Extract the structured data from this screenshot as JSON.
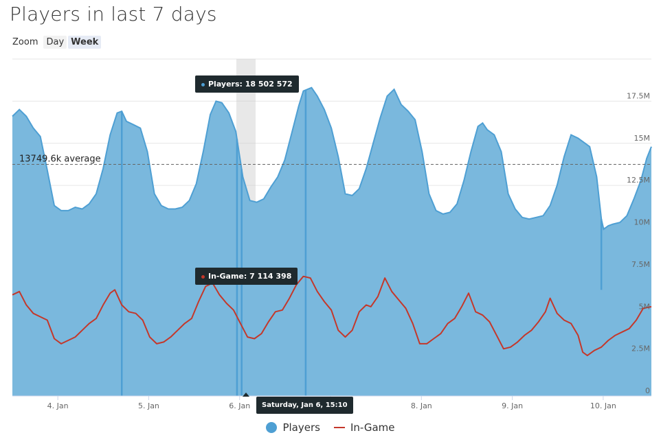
{
  "title": "Players in last 7 days",
  "zoom": {
    "label": "Zoom",
    "options": [
      "Day",
      "Week"
    ],
    "selected": "Week"
  },
  "chart_data": {
    "type": "area",
    "x_unit": "days",
    "xlim": [
      3.5,
      10.53
    ],
    "ylim": [
      0,
      20000000
    ],
    "yticks": [
      {
        "value": 0,
        "label": "0"
      },
      {
        "value": 2500000,
        "label": "2.5M"
      },
      {
        "value": 5000000,
        "label": "5M"
      },
      {
        "value": 7500000,
        "label": "7.5M"
      },
      {
        "value": 10000000,
        "label": "10M"
      },
      {
        "value": 12500000,
        "label": "12.5M"
      },
      {
        "value": 15000000,
        "label": "15M"
      },
      {
        "value": 17500000,
        "label": "17.5M"
      }
    ],
    "xticks": [
      {
        "value": 4,
        "label": "4. Jan"
      },
      {
        "value": 5,
        "label": "5. Jan"
      },
      {
        "value": 6,
        "label": "6. Jan"
      },
      {
        "value": 7,
        "label": "7. Jan"
      },
      {
        "value": 8,
        "label": "8. Jan"
      },
      {
        "value": 9,
        "label": "9. Jan"
      },
      {
        "value": 10,
        "label": "10. Jan"
      }
    ],
    "average": {
      "value": 13749600,
      "label": "13749.6k average"
    },
    "series": [
      {
        "name": "Players",
        "color": "#4e9fd3",
        "points": [
          [
            3.5,
            16.6
          ],
          [
            3.56,
            17.0
          ],
          [
            3.62,
            16.6
          ],
          [
            3.68,
            15.9
          ],
          [
            3.74,
            15.4
          ],
          [
            3.8,
            13.4
          ],
          [
            3.86,
            11.3
          ],
          [
            3.92,
            11.0
          ],
          [
            3.98,
            11.0
          ],
          [
            4.04,
            11.2
          ],
          [
            4.1,
            11.1
          ],
          [
            4.16,
            11.4
          ],
          [
            4.22,
            12.0
          ],
          [
            4.28,
            13.5
          ],
          [
            4.34,
            15.5
          ],
          [
            4.4,
            16.8
          ],
          [
            4.44,
            16.9
          ],
          [
            4.48,
            16.3
          ],
          [
            4.54,
            16.1
          ],
          [
            4.6,
            15.9
          ],
          [
            4.66,
            14.5
          ],
          [
            4.72,
            12.0
          ],
          [
            4.78,
            11.3
          ],
          [
            4.84,
            11.1
          ],
          [
            4.9,
            11.1
          ],
          [
            4.96,
            11.2
          ],
          [
            5.02,
            11.6
          ],
          [
            5.08,
            12.6
          ],
          [
            5.14,
            14.5
          ],
          [
            5.2,
            16.7
          ],
          [
            5.25,
            17.5
          ],
          [
            5.3,
            17.4
          ],
          [
            5.36,
            16.8
          ],
          [
            5.42,
            15.7
          ],
          [
            5.48,
            13.0
          ],
          [
            5.54,
            11.6
          ],
          [
            5.6,
            11.5
          ],
          [
            5.66,
            11.7
          ],
          [
            5.72,
            12.4
          ],
          [
            5.78,
            13.0
          ],
          [
            5.84,
            14.0
          ],
          [
            5.9,
            15.6
          ],
          [
            5.96,
            17.2
          ],
          [
            6.0,
            18.1
          ],
          [
            6.07,
            18.3
          ],
          [
            6.12,
            17.8
          ],
          [
            6.18,
            17.0
          ],
          [
            6.24,
            15.9
          ],
          [
            6.3,
            14.2
          ],
          [
            6.36,
            12.0
          ],
          [
            6.42,
            11.9
          ],
          [
            6.48,
            12.3
          ],
          [
            6.54,
            13.5
          ],
          [
            6.6,
            15.0
          ],
          [
            6.66,
            16.5
          ],
          [
            6.72,
            17.8
          ],
          [
            6.78,
            18.2
          ],
          [
            6.84,
            17.3
          ],
          [
            6.9,
            16.9
          ],
          [
            6.96,
            16.4
          ],
          [
            7.02,
            14.5
          ],
          [
            7.08,
            12.0
          ],
          [
            7.14,
            11.0
          ],
          [
            7.2,
            10.8
          ],
          [
            7.26,
            10.9
          ],
          [
            7.32,
            11.4
          ],
          [
            7.38,
            12.8
          ],
          [
            7.44,
            14.5
          ],
          [
            7.5,
            16.0
          ],
          [
            7.54,
            16.2
          ],
          [
            7.58,
            15.8
          ],
          [
            7.64,
            15.5
          ],
          [
            7.7,
            14.5
          ],
          [
            7.76,
            12.0
          ],
          [
            7.82,
            11.1
          ],
          [
            7.88,
            10.6
          ],
          [
            7.94,
            10.5
          ],
          [
            8.0,
            10.6
          ],
          [
            8.06,
            10.7
          ],
          [
            8.12,
            11.3
          ],
          [
            8.18,
            12.5
          ],
          [
            8.24,
            14.2
          ],
          [
            8.3,
            15.5
          ],
          [
            8.36,
            15.3
          ],
          [
            8.4,
            15.1
          ],
          [
            8.46,
            14.8
          ],
          [
            8.52,
            13.0
          ],
          [
            8.56,
            10.5
          ],
          [
            8.58,
            9.9
          ],
          [
            8.62,
            10.1
          ],
          [
            8.66,
            10.2
          ],
          [
            8.72,
            10.3
          ],
          [
            8.78,
            10.7
          ],
          [
            8.84,
            11.7
          ],
          [
            8.9,
            12.8
          ],
          [
            8.95,
            14.1
          ],
          [
            8.99,
            14.8
          ]
        ],
        "dips": [
          [
            4.44,
            0
          ],
          [
            5.43,
            0
          ],
          [
            5.47,
            0
          ],
          [
            6.02,
            0
          ],
          [
            8.56,
            6.3
          ]
        ]
      },
      {
        "name": "In-Game",
        "color": "#c4372a",
        "points": [
          [
            3.5,
            6.0
          ],
          [
            3.56,
            6.2
          ],
          [
            3.62,
            5.4
          ],
          [
            3.68,
            4.9
          ],
          [
            3.74,
            4.7
          ],
          [
            3.8,
            4.5
          ],
          [
            3.86,
            3.4
          ],
          [
            3.92,
            3.1
          ],
          [
            3.98,
            3.3
          ],
          [
            4.04,
            3.5
          ],
          [
            4.1,
            3.9
          ],
          [
            4.16,
            4.3
          ],
          [
            4.22,
            4.6
          ],
          [
            4.28,
            5.4
          ],
          [
            4.34,
            6.1
          ],
          [
            4.38,
            6.3
          ],
          [
            4.44,
            5.4
          ],
          [
            4.5,
            5.0
          ],
          [
            4.56,
            4.9
          ],
          [
            4.62,
            4.5
          ],
          [
            4.68,
            3.5
          ],
          [
            4.74,
            3.1
          ],
          [
            4.8,
            3.2
          ],
          [
            4.86,
            3.5
          ],
          [
            4.92,
            3.9
          ],
          [
            4.98,
            4.3
          ],
          [
            5.04,
            4.6
          ],
          [
            5.1,
            5.6
          ],
          [
            5.16,
            6.5
          ],
          [
            5.22,
            6.7
          ],
          [
            5.28,
            6.0
          ],
          [
            5.34,
            5.5
          ],
          [
            5.4,
            5.1
          ],
          [
            5.46,
            4.3
          ],
          [
            5.52,
            3.5
          ],
          [
            5.58,
            3.4
          ],
          [
            5.64,
            3.7
          ],
          [
            5.7,
            4.4
          ],
          [
            5.76,
            5.0
          ],
          [
            5.82,
            5.1
          ],
          [
            5.88,
            5.8
          ],
          [
            5.94,
            6.6
          ],
          [
            6.0,
            7.1
          ],
          [
            6.06,
            7.0
          ],
          [
            6.12,
            6.2
          ],
          [
            6.18,
            5.6
          ],
          [
            6.24,
            5.1
          ],
          [
            6.3,
            3.9
          ],
          [
            6.36,
            3.5
          ],
          [
            6.42,
            3.9
          ],
          [
            6.48,
            5.0
          ],
          [
            6.54,
            5.4
          ],
          [
            6.58,
            5.3
          ],
          [
            6.64,
            5.9
          ],
          [
            6.7,
            7.0
          ],
          [
            6.76,
            6.2
          ],
          [
            6.82,
            5.7
          ],
          [
            6.88,
            5.2
          ],
          [
            6.94,
            4.3
          ],
          [
            7.0,
            3.1
          ],
          [
            7.06,
            3.1
          ],
          [
            7.12,
            3.4
          ],
          [
            7.18,
            3.7
          ],
          [
            7.24,
            4.3
          ],
          [
            7.3,
            4.6
          ],
          [
            7.36,
            5.3
          ],
          [
            7.42,
            6.1
          ],
          [
            7.48,
            5.0
          ],
          [
            7.54,
            4.8
          ],
          [
            7.6,
            4.4
          ],
          [
            7.66,
            3.6
          ],
          [
            7.72,
            2.8
          ],
          [
            7.78,
            2.9
          ],
          [
            7.84,
            3.2
          ],
          [
            7.9,
            3.6
          ],
          [
            7.96,
            3.9
          ],
          [
            8.02,
            4.4
          ],
          [
            8.08,
            5.0
          ],
          [
            8.12,
            5.8
          ],
          [
            8.18,
            4.9
          ],
          [
            8.24,
            4.5
          ],
          [
            8.3,
            4.3
          ],
          [
            8.36,
            3.6
          ],
          [
            8.4,
            2.6
          ],
          [
            8.44,
            2.4
          ],
          [
            8.5,
            2.7
          ],
          [
            8.56,
            2.9
          ],
          [
            8.62,
            3.3
          ],
          [
            8.68,
            3.6
          ],
          [
            8.74,
            3.8
          ],
          [
            8.8,
            4.0
          ],
          [
            8.86,
            4.5
          ],
          [
            8.92,
            5.2
          ],
          [
            8.99,
            5.3
          ]
        ]
      }
    ],
    "highlight_x": 6.07,
    "tooltips": {
      "players": {
        "label": "Players:",
        "value": "18 502 572"
      },
      "ingame": {
        "label": "In-Game:",
        "value": "7 114 398"
      },
      "date": "Saturday, Jan 6, 15:10"
    },
    "legend_position": "bottom-center",
    "grid": true
  }
}
